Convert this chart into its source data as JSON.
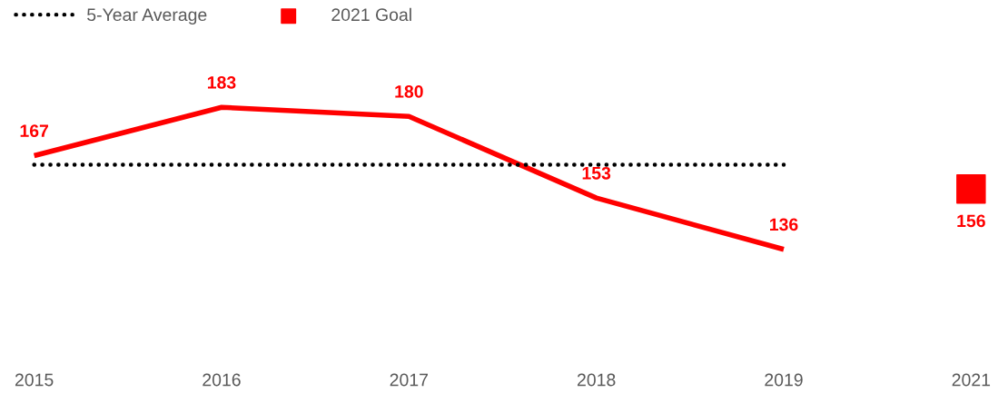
{
  "chart_data": {
    "type": "line",
    "categories": [
      "2015",
      "2016",
      "2017",
      "2018",
      "2019",
      "2021"
    ],
    "tick_labels": "x",
    "grid": false,
    "legend": "top left",
    "series": [
      {
        "color": "#ff0000",
        "values": [
          167,
          183,
          180,
          153,
          136,
          null
        ],
        "value_labels": [
          "167",
          "183",
          "180",
          "153",
          "136",
          null
        ],
        "marker": "none",
        "line_style": "solid"
      },
      {
        "name": "5-Year Average",
        "color": "#000000",
        "values": [
          164,
          164,
          164,
          164,
          164,
          null
        ],
        "marker": "none",
        "line_style": "dotted"
      },
      {
        "name": "2021 Goal",
        "type": "scatter",
        "color": "#ff0000",
        "values": [
          null,
          null,
          null,
          null,
          null,
          156
        ],
        "value_labels": [
          null,
          null,
          null,
          null,
          null,
          "156"
        ],
        "marker": "square"
      }
    ]
  }
}
